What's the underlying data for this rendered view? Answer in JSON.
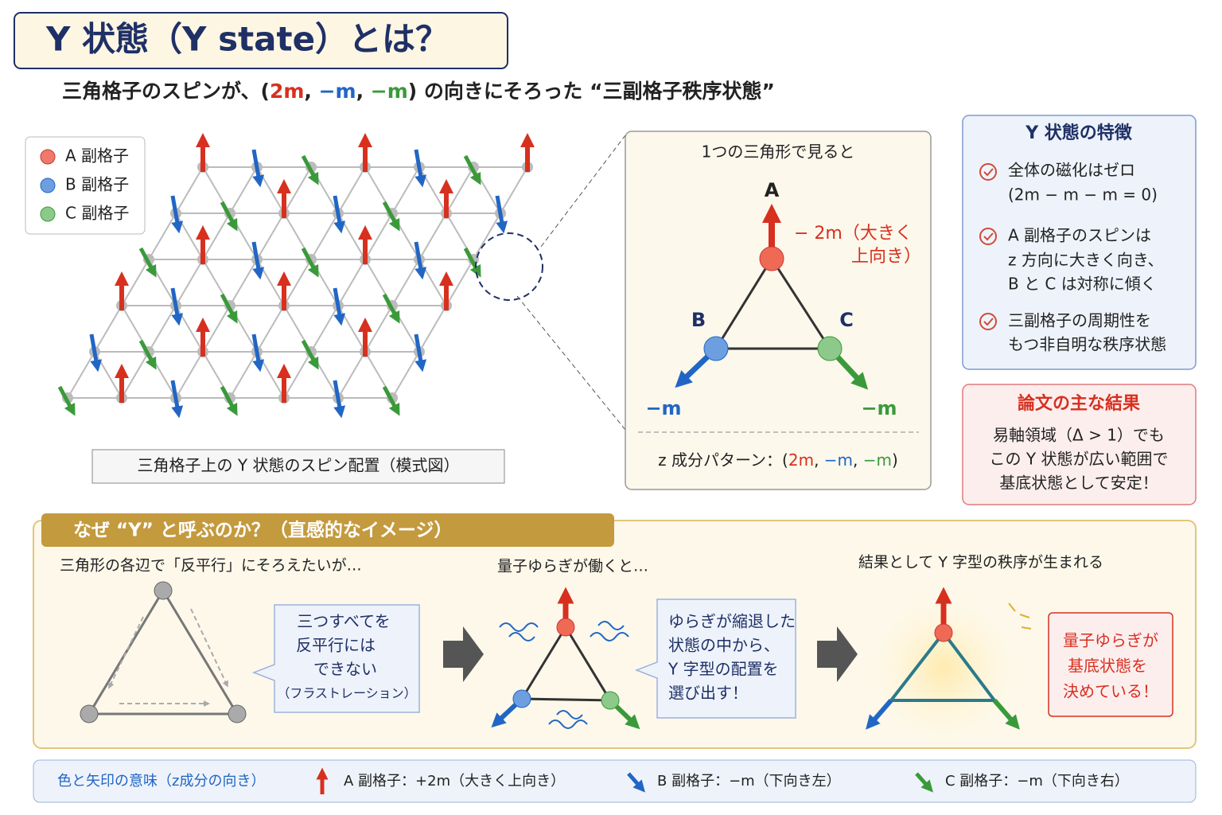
{
  "header": {
    "title": "Y 状態（Y state）とは？",
    "subtitle": [
      "三角格子のスピンが、(",
      "2m",
      ", ",
      "−m",
      ", ",
      "−m",
      ") の向きにそろった “三副格子秩序状態”"
    ]
  },
  "lattice": {
    "legend": [
      "A 副格子",
      "B 副格子",
      "C 副格子"
    ],
    "caption": "三角格子上の Y 状態のスピン配置（模式図）"
  },
  "triangle_view": {
    "title": "1つの三角形で見ると",
    "labels": [
      "A",
      "B",
      "C"
    ],
    "a_note": [
      "− 2m（大きく",
      "上向き）"
    ],
    "b_value": "−m",
    "c_value": "−m",
    "pattern": [
      "z 成分パターン：(",
      "2m",
      ", ",
      "−m",
      ", ",
      "−m",
      ")"
    ]
  },
  "features": {
    "title": "Y 状態の特徴",
    "items": [
      [
        "全体の磁化はゼロ",
        "(2m − m − m = 0)"
      ],
      [
        "A 副格子のスピンは",
        "z 方向に大きく向き、",
        "B と C は対称に傾く"
      ],
      [
        "三副格子の周期性を",
        "もつ非自明な秩序状態"
      ]
    ]
  },
  "result": {
    "title": "論文の主な結果",
    "lines": [
      "易軸領域（Δ > 1）でも",
      "この Y 状態が広い範囲で",
      "基底状態として安定！"
    ]
  },
  "why": {
    "title": "なぜ “Y” と呼ぶのか？（直感的なイメージ）",
    "steps": [
      {
        "title": "三角形の各辺で「反平行」にそろえたいが…",
        "bubble": [
          "三つすべてを",
          "反平行には",
          "できない",
          "（フラストレーション）"
        ]
      },
      {
        "title": "量子ゆらぎが働くと…",
        "bubble": [
          "ゆらぎが縮退した",
          "状態の中から、",
          "Y 字型の配置を",
          "選び出す！"
        ]
      },
      {
        "title": "結果として Y 字型の秩序が生まれる",
        "bubble": [
          "量子ゆらぎが",
          "基底状態を",
          "決めている！"
        ]
      }
    ]
  },
  "footer": {
    "title": "色と矢印の意味（z成分の向き）",
    "items": [
      "A 副格子：+2m（大きく上向き）",
      "B 副格子：−m（下向き左）",
      "C 副格子：−m（下向き右）"
    ]
  }
}
